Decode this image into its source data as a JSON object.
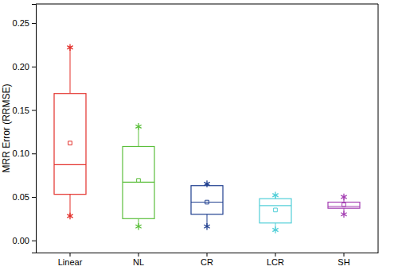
{
  "chart_data": {
    "type": "box",
    "y_label": "MRR Error (RRMSE)",
    "categories": [
      "Linear",
      "NL",
      "CR",
      "LCR",
      "SH"
    ],
    "colors": [
      "#e3302b",
      "#5cbf3c",
      "#1f3f8f",
      "#52cfd8",
      "#a43fb2"
    ],
    "min": [
      0.028,
      0.016,
      0.016,
      0.012,
      0.03
    ],
    "q1": [
      0.053,
      0.025,
      0.03,
      0.02,
      0.037
    ],
    "median": [
      0.087,
      0.067,
      0.044,
      0.04,
      0.039
    ],
    "q3": [
      0.169,
      0.108,
      0.063,
      0.048,
      0.044
    ],
    "max": [
      0.222,
      0.131,
      0.065,
      0.052,
      0.05
    ],
    "mean": [
      0.112,
      0.069,
      0.044,
      0.035,
      0.041
    ],
    "ylim": [
      -0.014,
      0.272
    ],
    "yticks": [
      {
        "value": 0,
        "label": "0.00"
      },
      0.05,
      {
        "value": 0.1,
        "label": "0.10"
      },
      0.15,
      {
        "value": 0.2,
        "label": "0.20"
      },
      0.25
    ]
  }
}
